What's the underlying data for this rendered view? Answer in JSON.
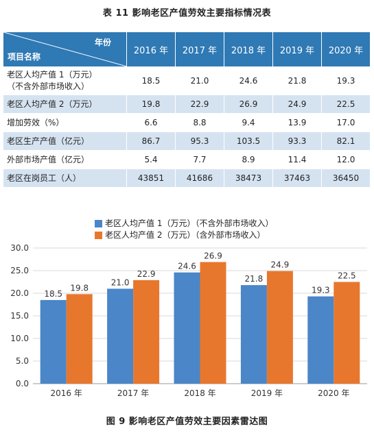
{
  "table": {
    "title": "表 11   影响老区产值劳效主要指标情况表",
    "header_year": "年份",
    "header_item": "项目名称",
    "years": [
      "2016 年",
      "2017 年",
      "2018 年",
      "2019 年",
      "2020 年"
    ],
    "rows": [
      {
        "label": "老区人均产值 1（万元）\n（不含外部市场收入）",
        "values": [
          "18.5",
          "21.0",
          "24.6",
          "21.8",
          "19.3"
        ]
      },
      {
        "label": "老区人均产值 2（万元）",
        "values": [
          "19.8",
          "22.9",
          "26.9",
          "24.9",
          "22.5"
        ]
      },
      {
        "label": "增加劳效（%）",
        "values": [
          "6.6",
          "8.8",
          "9.4",
          "13.9",
          "17.0"
        ]
      },
      {
        "label": "老区生产产值（亿元）",
        "values": [
          "86.7",
          "95.3",
          "103.5",
          "93.3",
          "82.1"
        ]
      },
      {
        "label": "外部市场产值（亿元）",
        "values": [
          "5.4",
          "7.7",
          "8.9",
          "11.4",
          "12.0"
        ]
      },
      {
        "label": "老区在岗员工（人）",
        "values": [
          "43851",
          "41686",
          "38473",
          "37463",
          "36450"
        ]
      }
    ],
    "colors": {
      "header": "#2f79b5",
      "stripe": "#d5e3f1"
    }
  },
  "figure": {
    "caption": "图 9   影响老区产值劳效主要因素雷达图"
  },
  "chart_data": {
    "type": "bar",
    "categories": [
      "2016 年",
      "2017 年",
      "2018 年",
      "2019 年",
      "2020 年"
    ],
    "series": [
      {
        "name": "老区人均产值 1（万元）（不含外部市场收入）",
        "values": [
          18.5,
          21.0,
          24.6,
          21.8,
          19.3
        ],
        "labels": [
          "18.5",
          "21.0",
          "24.6",
          "21.8",
          "19.3"
        ],
        "color": "#4a86c8"
      },
      {
        "name": "老区人均产值 2（万元）（含外部市场收入）",
        "values": [
          19.8,
          22.9,
          26.9,
          24.9,
          22.5
        ],
        "labels": [
          "19.8",
          "22.9",
          "26.9",
          "24.9",
          "22.5"
        ],
        "color": "#e8772e"
      }
    ],
    "yticks": [
      "0.0",
      "5.0",
      "10.0",
      "15.0",
      "20.0",
      "25.0",
      "30.0"
    ],
    "ylim": [
      0,
      30
    ],
    "grid": true,
    "legend_position": "top"
  }
}
